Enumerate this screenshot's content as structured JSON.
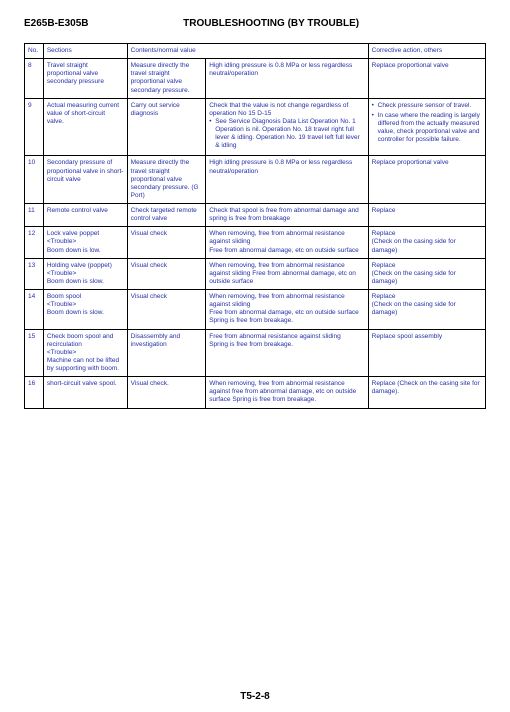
{
  "header": {
    "left": "E265B-E305B",
    "title": "TROUBLESHOOTING (BY TROUBLE)"
  },
  "columns": [
    "No.",
    "Sections",
    "Contents/normal value",
    "Corrective action, others"
  ],
  "rows": [
    {
      "no": "8",
      "section": "Travel straight proportional valve secondary pressure",
      "contents": "Measure directly the travel straight proportional valve secondary pressure.",
      "value": "High idling pressure is 0.8 MPa or less regardless neutral/operation",
      "corrective": "Replace proportional valve"
    },
    {
      "no": "9",
      "section": "Actual measuring current value of short-circuit valve.",
      "contents": "Carry out service diagnosis",
      "value_lead": "Check that the value is not change regardless of operation No 15 D-15",
      "value_bullets": [
        "See Service Diagnosis Data List Operation No. 1 Operation is nil. Operation No. 18 travel right full lever & idling. Operation No. 19 travel left full lever & idling"
      ],
      "corrective_bullets": [
        "Check pressure  sensor of travel.",
        "In case where the reading is largely differed from the actually measured value, check proportional valve and controller for possible failure."
      ]
    },
    {
      "no": "10",
      "section": "Secondary pressure of proportional valve in short-circuit valve",
      "contents": "Measure directly the travel straight proportional valve secondary pressure. (G Port)",
      "value": "High idling pressure is 0.8 MPa or less regardless neutral/operation",
      "corrective": "Replace proportional valve"
    },
    {
      "no": "11",
      "section": "Remote control valve",
      "contents": "Check targeted remote control valve",
      "value": "Check that spool is free from abnormal damage and spring is free from breakage",
      "corrective": "Replace"
    },
    {
      "no": "12",
      "section": "Lock valve poppet\n<Trouble>\nBoom down is low.",
      "contents": "Visual check",
      "value": "When removing, free from abnormal resistance against sliding\nFree from abnormal damage, etc on outside surface",
      "corrective": "Replace\n(Check on the casing side for damage)"
    },
    {
      "no": "13",
      "section": "Holding valve (poppet)\n<Trouble>\nBoom down is slow.",
      "contents": "Visual check",
      "value": "When removing, free from abnormal resistance against sliding  Free from abnormal damage, etc on outside surface",
      "corrective": "Replace\n(Check on the casing side for damage)"
    },
    {
      "no": "14",
      "section": "Boom spool\n<Trouble>\nBoom down is slow.",
      "contents": "Visual check",
      "value": "When removing, free from abnormal resistance against sliding\nFree from abnormal damage, etc on outside surface\nSpring is free from breakage.",
      "corrective": "Replace\n(Check on the casing side for damage)"
    },
    {
      "no": "15",
      "section": "Check boom spool and recirculation\n<Trouble>\nMachine can not be lifted by supporting with boom.",
      "contents": "Disassembly and investigation",
      "value": "Free from abnormal resistance against sliding\nSpring is free from breakage.",
      "corrective": "Replace spool assembly"
    },
    {
      "no": "16",
      "section": "short-circuit valve spool.",
      "contents": "Visual check.",
      "value": "When removing, free from abnormal resistance against free from abnormal damage, etc on outside surface Spring is free from breakage.",
      "corrective": "Replace (Check on the casing site for damage)."
    }
  ],
  "footer": "T5-2-8"
}
